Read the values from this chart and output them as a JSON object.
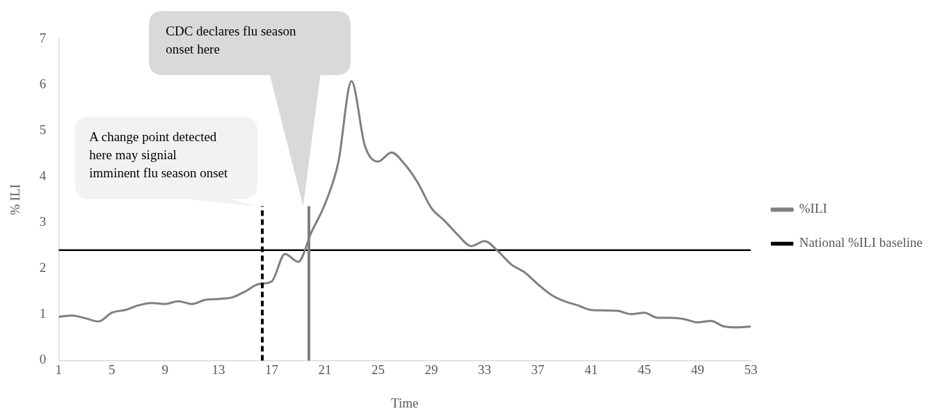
{
  "chart_data": {
    "type": "line",
    "xlabel": "Time",
    "ylabel": "% ILI",
    "x": [
      1,
      2,
      3,
      4,
      5,
      6,
      7,
      8,
      9,
      10,
      11,
      12,
      13,
      14,
      15,
      16,
      17,
      18,
      19,
      20,
      21,
      22,
      23,
      24,
      25,
      26,
      27,
      28,
      29,
      30,
      31,
      32,
      33,
      34,
      35,
      36,
      37,
      38,
      39,
      40,
      41,
      42,
      43,
      44,
      45,
      46,
      47,
      48,
      49,
      50,
      51,
      52,
      53
    ],
    "series": [
      {
        "name": "%ILI",
        "color": "#7f7f7f",
        "values": [
          0.95,
          0.98,
          0.92,
          0.85,
          1.04,
          1.1,
          1.2,
          1.25,
          1.23,
          1.29,
          1.23,
          1.32,
          1.34,
          1.37,
          1.5,
          1.66,
          1.72,
          2.32,
          2.15,
          2.8,
          3.4,
          4.3,
          6.08,
          4.68,
          4.33,
          4.53,
          4.27,
          3.86,
          3.32,
          3.04,
          2.73,
          2.49,
          2.6,
          2.38,
          2.09,
          1.92,
          1.66,
          1.43,
          1.29,
          1.2,
          1.1,
          1.09,
          1.08,
          1.01,
          1.04,
          0.93,
          0.93,
          0.9,
          0.83,
          0.86,
          0.74,
          0.72,
          0.74
        ]
      },
      {
        "name": "National %ILI baseline",
        "color": "#000000",
        "type": "line",
        "x": [
          1,
          53
        ],
        "values": [
          2.4,
          2.4
        ]
      }
    ],
    "xlim": [
      1,
      53
    ],
    "xticks": [
      1,
      5,
      9,
      13,
      17,
      21,
      25,
      29,
      33,
      37,
      41,
      45,
      49,
      53
    ],
    "ylim": [
      0,
      7
    ],
    "yticks": [
      0,
      1,
      2,
      3,
      4,
      5,
      6,
      7
    ],
    "ref_lines": [
      {
        "axis": "x",
        "value": 16.3,
        "color": "#000000",
        "line_style": "dashed"
      },
      {
        "axis": "x",
        "value": 19.8,
        "color": "#7f7f7f",
        "line_style": "solid"
      }
    ],
    "annotations": [
      "A change point detected here may signial imminent flu season onset",
      "CDC declares flu season onset here"
    ],
    "grid": false,
    "legend": "right",
    "marker": "none",
    "line_style": "solid"
  }
}
